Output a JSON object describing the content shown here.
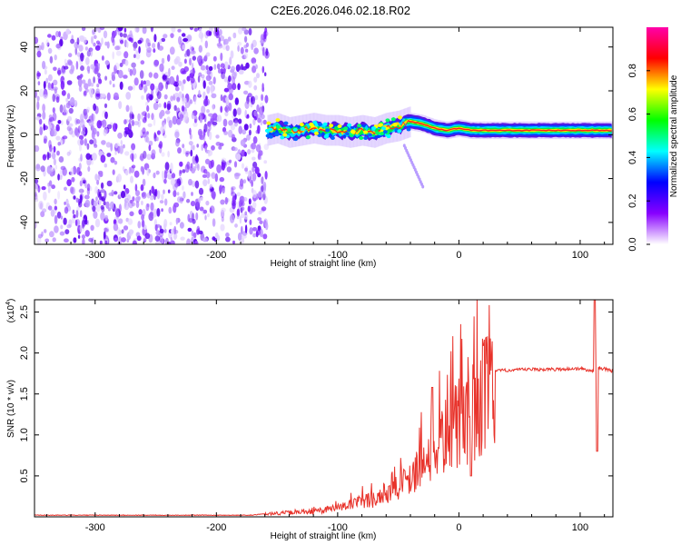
{
  "title": "C2E6.2026.046.02.18.R02",
  "chart_data": [
    {
      "type": "heatmap",
      "xlabel": "Height of straight line (km)",
      "ylabel": "Frequency (Hz)",
      "xlim": [
        -350,
        127
      ],
      "ylim": [
        -50,
        49
      ],
      "xticks": [
        -300,
        -200,
        -100,
        0,
        100
      ],
      "yticks": [
        -40,
        -20,
        0,
        20,
        40
      ],
      "colorbar": {
        "label": "Normalized spectral amplitude",
        "range": [
          0,
          1
        ],
        "ticks": [
          "0.0",
          "0.2",
          "0.4",
          "0.6",
          "0.8"
        ],
        "tick_values": [
          0,
          0.2,
          0.4,
          0.6,
          0.8
        ],
        "colors": [
          "#ffffff",
          "#8800ff",
          "#0000ff",
          "#00ffff",
          "#00ff00",
          "#ffff00",
          "#ff0000",
          "#ff00aa"
        ]
      },
      "noise_region_x": [
        -350,
        -158
      ],
      "ridge": {
        "x": [
          -158,
          -150,
          -140,
          -130,
          -120,
          -110,
          -100,
          -90,
          -80,
          -70,
          -60,
          -50,
          -40,
          -30,
          -20,
          -10,
          0,
          10,
          20,
          40,
          60,
          80,
          100,
          110,
          127
        ],
        "y": [
          2,
          3,
          1,
          2,
          3,
          2,
          2,
          1,
          2,
          1,
          3,
          4,
          6,
          5,
          3,
          2,
          3,
          2,
          2,
          2,
          2,
          2,
          2,
          2,
          2
        ]
      }
    },
    {
      "type": "line",
      "xlabel": "Height of straight line (km)",
      "ylabel": "SNR (10 * v/v)",
      "y_scale_label": "(x10",
      "y_scale_exp": "4",
      "xlim": [
        -350,
        127
      ],
      "ylim": [
        0,
        2.65
      ],
      "xticks": [
        -300,
        -200,
        -100,
        0,
        100
      ],
      "yticks": [
        "0.5",
        "1.0",
        "1.5",
        "2.0",
        "2.5"
      ],
      "ytick_values": [
        0.5,
        1.0,
        1.5,
        2.0,
        2.5
      ],
      "line_color": "#e8322a",
      "trend": {
        "x": [
          -350,
          -170,
          -160,
          -120,
          -100,
          -80,
          -60,
          -50,
          -40,
          -30,
          -20,
          -10,
          0,
          10,
          20,
          30,
          40,
          60,
          80,
          100,
          110,
          113,
          116,
          127
        ],
        "y": [
          0.02,
          0.02,
          0.04,
          0.07,
          0.12,
          0.2,
          0.3,
          0.38,
          0.55,
          0.75,
          0.95,
          1.1,
          1.25,
          1.4,
          1.65,
          1.78,
          1.79,
          1.8,
          1.8,
          1.81,
          1.78,
          1.8,
          1.82,
          1.78
        ]
      },
      "spikes": [
        {
          "x": 112,
          "y": 2.65
        },
        {
          "x": 114,
          "y": 0.8
        },
        {
          "x": 10,
          "y": 0.5
        },
        {
          "x": -22,
          "y": 1.58
        }
      ]
    }
  ]
}
